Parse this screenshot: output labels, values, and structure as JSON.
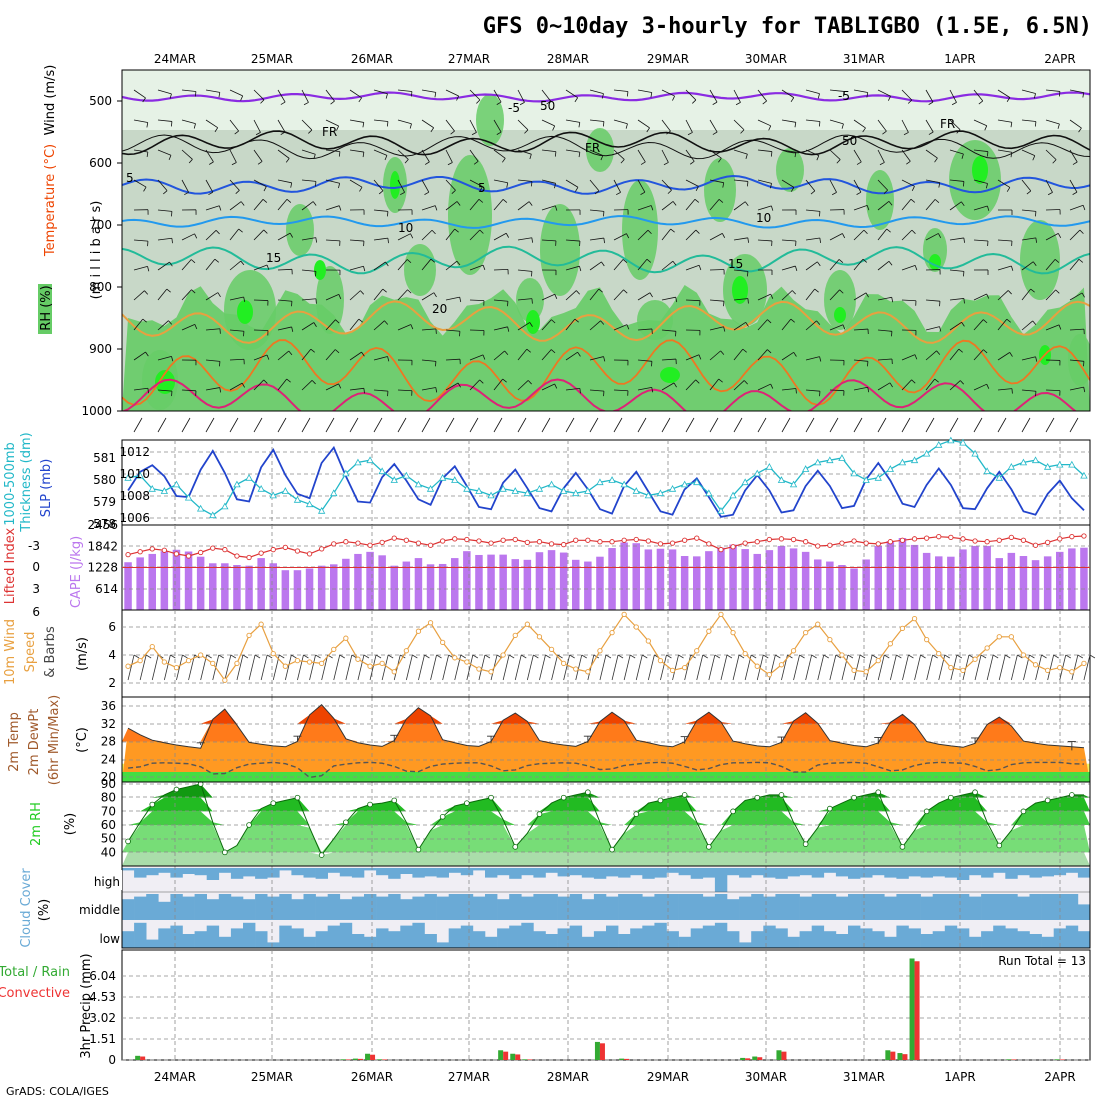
{
  "title": "GFS 0~10day 3-hourly for TABLIGBO (1.5E, 6.5N)",
  "credit": "GrADS: COLA/IGES",
  "date_labels": [
    "24MAR",
    "25MAR",
    "26MAR",
    "27MAR",
    "28MAR",
    "29MAR",
    "30MAR",
    "31MAR",
    "1APR",
    "2APR"
  ],
  "colors": {
    "rh_light": "#e6f2e6",
    "rh_mid": "#c8d8c8",
    "rh_green": "#66cc66",
    "rh_bright": "#22ee22",
    "slp": "#2244cc",
    "thickness": "#22b8c8",
    "lifted_index": "#dd3333",
    "cape": "#bb77ee",
    "wind_speed": "#e8a040",
    "temp_high": "#ee4400",
    "temp_mid": "#ff9922",
    "dewpt": "#555555",
    "rh2m": "#22cc22",
    "cloud": "#6aaad6",
    "precip_total": "#33aa33",
    "precip_conv": "#ee3333"
  },
  "panels": {
    "upper": {
      "labels": [
        "Wind (m/s)",
        "Temperature (°C)",
        "RH (%)",
        "(m i l l i b a r s)"
      ],
      "yticks": [
        "500",
        "600",
        "700",
        "800",
        "900",
        "1000"
      ],
      "isotherm_labels": [
        "-5",
        "-5",
        "5",
        "5",
        "10",
        "10",
        "15",
        "15",
        "20",
        "FR",
        "FR",
        "FR",
        "50",
        "50"
      ]
    },
    "slp": {
      "labels": [
        "1000-500mb",
        "Thickness (dm)",
        "SLP (mb)"
      ],
      "left_ticks": [
        "581",
        "580",
        "579",
        "578"
      ],
      "right_ticks": [
        "1012",
        "1010",
        "1008",
        "1006"
      ]
    },
    "li": {
      "labels": [
        "Lifted Index",
        "CAPE (J/kg)"
      ],
      "left_ticks": [
        "-3",
        "0",
        "3",
        "6"
      ],
      "right_ticks": [
        "2456",
        "1842",
        "1228",
        "614"
      ]
    },
    "wind": {
      "labels": [
        "10m Wind",
        "Speed",
        "& Barbs",
        "(m/s)"
      ],
      "ticks": [
        "6",
        "4",
        "2"
      ]
    },
    "temp": {
      "labels": [
        "2m Temp",
        "2m DewPt",
        "(6hr Min/Max)",
        "(°C)"
      ],
      "ticks": [
        "36",
        "32",
        "28",
        "24",
        "20"
      ]
    },
    "rh": {
      "labels": [
        "2m RH",
        "(%)"
      ],
      "ticks": [
        "90",
        "80",
        "70",
        "60",
        "50",
        "40"
      ]
    },
    "cloud": {
      "labels": [
        "Cloud Cover",
        "(%)"
      ],
      "levels": [
        "high",
        "middle",
        "low"
      ]
    },
    "precip": {
      "labels": [
        "Total / Rain",
        "Convective",
        "3hr Precip (mm)"
      ],
      "ticks": [
        "6.04",
        "4.53",
        "3.02",
        "1.51",
        "0"
      ],
      "run_total": "Run Total = 13"
    }
  },
  "chart_data": {
    "type": "meteogram",
    "x_unit": "3-hourly steps from 23 MAR 12Z (about 80 steps)",
    "slp_mb": [
      1008.5,
      1010.2,
      1010.8,
      1009.8,
      1008.0,
      1007.9,
      1010.4,
      1012.1,
      1010.1,
      1007.7,
      1007.5,
      1010.6,
      1012.2,
      1009.9,
      1008.2,
      1007.8,
      1011.0,
      1012.4,
      1009.8,
      1007.5,
      1007.4,
      1009.7,
      1010.9,
      1009.4,
      1007.7,
      1007.2,
      1009.6,
      1010.7,
      1008.9,
      1007.0,
      1006.8,
      1009.2,
      1010.4,
      1008.7,
      1006.9,
      1006.6,
      1008.7,
      1010.1,
      1008.6,
      1006.8,
      1006.4,
      1008.9,
      1010.2,
      1008.4,
      1006.6,
      1006.3,
      1008.6,
      1009.6,
      1007.9,
      1006.1,
      1006.3,
      1008.5,
      1009.9,
      1008.5,
      1006.5,
      1006.7,
      1008.9,
      1010.3,
      1008.9,
      1006.9,
      1007.1,
      1009.5,
      1011.0,
      1009.4,
      1007.3,
      1007.0,
      1009.0,
      1010.5,
      1009.0,
      1006.9,
      1006.8,
      1008.7,
      1010.2,
      1008.6,
      1006.6,
      1006.3,
      1008.2,
      1009.4,
      1007.8,
      1006.7
    ],
    "thickness_dm": [
      580.1,
      580.2,
      579.6,
      579.5,
      579.8,
      579.2,
      578.7,
      578.4,
      578.8,
      579.8,
      580.1,
      579.6,
      579.3,
      579.5,
      579.1,
      578.9,
      578.6,
      579.4,
      580.3,
      580.8,
      580.9,
      580.4,
      580.0,
      580.2,
      579.8,
      579.6,
      580.1,
      580.0,
      579.6,
      579.5,
      579.3,
      579.6,
      579.5,
      579.4,
      579.6,
      579.8,
      579.5,
      579.4,
      579.5,
      579.9,
      580.0,
      579.8,
      579.5,
      579.3,
      579.4,
      579.6,
      579.8,
      579.9,
      579.4,
      578.6,
      579.3,
      579.9,
      580.3,
      580.6,
      580.0,
      579.8,
      580.5,
      580.8,
      580.9,
      581.0,
      580.3,
      580.0,
      580.1,
      580.5,
      580.8,
      580.9,
      581.2,
      581.6,
      581.8,
      581.7,
      581.2,
      580.4,
      580.1,
      580.6,
      580.8,
      580.9,
      580.6,
      580.7,
      580.7,
      580.2
    ],
    "lifted_index": [
      -1.8,
      -2.2,
      -2.6,
      -2.4,
      -1.9,
      -1.6,
      -2.1,
      -2.7,
      -2.5,
      -1.6,
      -1.4,
      -2.0,
      -2.5,
      -2.8,
      -2.3,
      -1.9,
      -2.6,
      -3.3,
      -3.6,
      -3.4,
      -3.1,
      -3.5,
      -4.1,
      -3.8,
      -3.4,
      -3.1,
      -3.7,
      -4.0,
      -3.9,
      -3.7,
      -3.4,
      -3.8,
      -3.9,
      -3.5,
      -3.6,
      -3.3,
      -3.2,
      -3.8,
      -3.8,
      -3.6,
      -3.6,
      -3.8,
      -3.9,
      -3.7,
      -3.3,
      -3.4,
      -3.8,
      -4.1,
      -3.3,
      -2.5,
      -2.9,
      -3.4,
      -3.6,
      -3.9,
      -4.0,
      -3.9,
      -3.6,
      -3.0,
      -3.1,
      -3.4,
      -3.7,
      -3.4,
      -3.3,
      -3.6,
      -3.8,
      -4.0,
      -4.1,
      -4.3,
      -4.2,
      -4.0,
      -3.7,
      -3.6,
      -3.8,
      -4.2,
      -3.8,
      -3.1,
      -3.5,
      -4.0,
      -4.3,
      -4.4
    ],
    "cape_jkg": [
      1380,
      1520,
      1620,
      1700,
      1740,
      1690,
      1540,
      1350,
      1350,
      1300,
      1280,
      1500,
      1350,
      1150,
      1150,
      1200,
      1280,
      1320,
      1480,
      1620,
      1680,
      1580,
      1280,
      1400,
      1500,
      1320,
      1330,
      1500,
      1700,
      1590,
      1600,
      1600,
      1470,
      1450,
      1670,
      1730,
      1660,
      1450,
      1400,
      1540,
      1790,
      1950,
      1930,
      1750,
      1770,
      1750,
      1560,
      1550,
      1700,
      1800,
      1890,
      1760,
      1620,
      1730,
      1850,
      1780,
      1680,
      1460,
      1400,
      1300,
      1200,
      1460,
      1850,
      1990,
      2080,
      1880,
      1650,
      1550,
      1540,
      1750,
      1850,
      1850,
      1500,
      1650,
      1560,
      1440,
      1550,
      1680,
      1780,
      1800
    ],
    "wind_ms": [
      3.2,
      3.6,
      4.6,
      3.5,
      3.1,
      3.6,
      4.0,
      3.4,
      2.2,
      3.4,
      5.4,
      6.2,
      4.1,
      3.2,
      3.6,
      3.5,
      3.4,
      4.4,
      5.2,
      3.7,
      3.2,
      3.4,
      2.8,
      4.3,
      5.7,
      6.3,
      4.9,
      3.8,
      3.5,
      3.0,
      2.8,
      4.0,
      5.4,
      6.2,
      5.3,
      4.4,
      3.4,
      3.0,
      2.8,
      4.3,
      5.6,
      6.9,
      6.0,
      5.0,
      3.6,
      2.9,
      3.1,
      4.3,
      5.7,
      6.9,
      5.6,
      4.1,
      3.2,
      2.6,
      3.3,
      4.3,
      5.6,
      6.2,
      5.1,
      4.0,
      2.9,
      2.8,
      3.6,
      4.8,
      5.9,
      6.6,
      5.1,
      4.1,
      3.1,
      2.9,
      3.7,
      4.5,
      5.3,
      5.3,
      4.0,
      3.3,
      2.9,
      3.1,
      2.8,
      3.4
    ],
    "temp_c": [
      31.0,
      29.5,
      28.3,
      27.7,
      27.2,
      26.8,
      26.5,
      33.0,
      35.3,
      31.7,
      27.8,
      27.4,
      27.0,
      26.8,
      28.0,
      34.0,
      36.3,
      33.2,
      28.6,
      27.7,
      27.2,
      26.9,
      28.2,
      33.1,
      35.6,
      33.8,
      28.4,
      27.7,
      27.1,
      26.9,
      28.0,
      32.8,
      34.4,
      32.5,
      28.2,
      27.6,
      27.2,
      26.9,
      28.0,
      32.5,
      34.6,
      32.7,
      28.3,
      27.7,
      27.1,
      26.8,
      27.9,
      32.7,
      34.6,
      32.4,
      28.1,
      27.5,
      27.0,
      26.8,
      27.8,
      32.6,
      34.5,
      32.1,
      28.2,
      27.6,
      27.1,
      26.8,
      27.7,
      32.3,
      34.1,
      31.8,
      28.0,
      27.4,
      27.0,
      26.7,
      27.6,
      31.8,
      33.5,
      31.5,
      28.1,
      27.6,
      27.2,
      27.0,
      26.8,
      26.6
    ],
    "dewpt_c": [
      22.0,
      22.3,
      23.1,
      23.2,
      23.1,
      23.0,
      22.3,
      20.7,
      20.8,
      22.1,
      22.9,
      23.1,
      23.3,
      23.0,
      22.1,
      19.9,
      20.3,
      22.5,
      22.9,
      23.2,
      23.3,
      23.1,
      22.4,
      21.3,
      21.2,
      22.4,
      22.9,
      23.1,
      23.2,
      23.2,
      22.5,
      21.4,
      21.6,
      22.6,
      23.0,
      23.1,
      23.2,
      23.1,
      22.5,
      21.7,
      21.8,
      22.6,
      22.9,
      23.2,
      23.3,
      23.1,
      22.4,
      21.6,
      21.9,
      22.8,
      23.2,
      23.2,
      23.3,
      23.2,
      22.4,
      21.1,
      21.1,
      22.7,
      23.1,
      23.2,
      23.3,
      23.1,
      22.3,
      21.4,
      21.6,
      22.6,
      23.1,
      23.3,
      23.2,
      23.1,
      22.4,
      21.4,
      21.7,
      22.8,
      23.2,
      23.3,
      23.3,
      23.3,
      23.0,
      22.9
    ],
    "rh2m_pct": [
      48,
      62,
      75,
      82,
      86,
      88,
      90,
      62,
      40,
      45,
      60,
      72,
      76,
      78,
      80,
      58,
      38,
      50,
      62,
      72,
      75,
      76,
      78,
      62,
      42,
      56,
      66,
      74,
      76,
      78,
      80,
      64,
      44,
      54,
      68,
      76,
      80,
      82,
      84,
      62,
      42,
      54,
      68,
      76,
      78,
      80,
      82,
      62,
      44,
      56,
      70,
      78,
      80,
      82,
      82,
      62,
      46,
      58,
      72,
      76,
      80,
      82,
      84,
      62,
      44,
      56,
      70,
      76,
      80,
      82,
      84,
      62,
      45,
      56,
      70,
      76,
      78,
      80,
      82,
      82
    ],
    "precip_mm_total": [
      0,
      0.3,
      0,
      0,
      0,
      0,
      0,
      0,
      0,
      0,
      0,
      0,
      0,
      0,
      0,
      0,
      0,
      0,
      0.05,
      0.1,
      0.45,
      0.05,
      0,
      0,
      0,
      0,
      0,
      0,
      0,
      0,
      0,
      0.7,
      0.45,
      0.05,
      0,
      0,
      0,
      0,
      0,
      1.3,
      0,
      0.1,
      0,
      0,
      0,
      0,
      0,
      0,
      0,
      0,
      0,
      0.15,
      0.25,
      0,
      0.7,
      0,
      0,
      0,
      0,
      0,
      0,
      0,
      0,
      0.7,
      0.5,
      7.3,
      0,
      0,
      0,
      0,
      0,
      0,
      0,
      0.05,
      0,
      0,
      0,
      0.05,
      0,
      0
    ],
    "precip_mm_conv": [
      0,
      0.25,
      0,
      0,
      0,
      0,
      0,
      0,
      0,
      0,
      0,
      0,
      0,
      0,
      0,
      0,
      0,
      0,
      0.04,
      0.08,
      0.38,
      0.04,
      0,
      0,
      0,
      0,
      0,
      0,
      0,
      0,
      0,
      0.6,
      0.4,
      0.04,
      0,
      0,
      0,
      0,
      0,
      1.2,
      0,
      0.08,
      0,
      0,
      0,
      0,
      0,
      0,
      0,
      0,
      0,
      0.12,
      0.2,
      0,
      0.6,
      0,
      0,
      0,
      0,
      0,
      0,
      0,
      0,
      0.6,
      0.42,
      7.1,
      0,
      0,
      0,
      0,
      0,
      0,
      0,
      0.04,
      0,
      0,
      0,
      0.04,
      0,
      0
    ],
    "cloud_high_pct": [
      10,
      40,
      30,
      20,
      40,
      25,
      30,
      50,
      20,
      45,
      35,
      45,
      40,
      10,
      30,
      40,
      45,
      20,
      35,
      40,
      10,
      30,
      45,
      25,
      40,
      35,
      40,
      20,
      30,
      10,
      40,
      30,
      45,
      30,
      40,
      20,
      35,
      30,
      40,
      45,
      35,
      40,
      30,
      45,
      40,
      20,
      30,
      45,
      40,
      100,
      30,
      40,
      30,
      40,
      45,
      35,
      30,
      40,
      20,
      35,
      45,
      40,
      30,
      40,
      45,
      35,
      40,
      35,
      40,
      50,
      30,
      40,
      20,
      45,
      30,
      40,
      35,
      30,
      20,
      40
    ],
    "cloud_mid_pct": [
      20,
      10,
      0,
      30,
      0,
      10,
      0,
      20,
      0,
      10,
      20,
      0,
      10,
      0,
      20,
      0,
      10,
      0,
      20,
      10,
      0,
      10,
      0,
      20,
      10,
      0,
      10,
      0,
      0,
      10,
      0,
      20,
      0,
      10,
      0,
      0,
      10,
      0,
      20,
      0,
      10,
      0,
      0,
      10,
      0,
      0,
      0,
      0,
      10,
      0,
      20,
      10,
      0,
      10,
      0,
      0,
      10,
      0,
      0,
      10,
      0,
      0,
      0,
      10,
      0,
      0,
      10,
      0,
      0,
      0,
      10,
      0,
      0,
      0,
      10,
      0,
      0,
      0,
      0,
      40
    ],
    "cloud_low_pct": [
      40,
      10,
      70,
      30,
      20,
      50,
      40,
      20,
      60,
      30,
      10,
      40,
      80,
      20,
      30,
      60,
      40,
      20,
      10,
      50,
      60,
      30,
      40,
      20,
      10,
      50,
      80,
      30,
      20,
      40,
      60,
      30,
      20,
      10,
      40,
      50,
      30,
      20,
      60,
      40,
      20,
      50,
      30,
      20,
      10,
      40,
      60,
      30,
      20,
      10,
      40,
      80,
      40,
      20,
      30,
      60,
      40,
      20,
      40,
      50,
      20,
      30,
      40,
      60,
      20,
      30,
      50,
      40,
      20,
      30,
      60,
      40,
      20,
      30,
      40,
      50,
      60,
      30,
      20,
      40
    ]
  }
}
